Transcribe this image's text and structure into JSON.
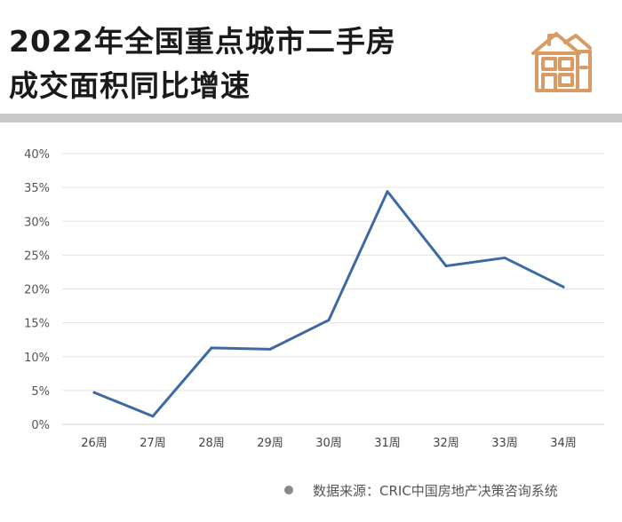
{
  "header": {
    "title_line1": "2022年全国重点城市二手房",
    "title_line2": "成交面积同比增速",
    "icon": "house-icon"
  },
  "footer": {
    "source": "数据来源：CRIC中国房地产决策咨询系统"
  },
  "colors": {
    "line": "#3d6aa3",
    "grid": "#e3e3e3",
    "icon": "#d99a63",
    "divider": "#c9c9c9"
  },
  "chart_data": {
    "type": "line",
    "categories": [
      "26周",
      "27周",
      "28周",
      "29周",
      "30周",
      "31周",
      "32周",
      "33周",
      "34周"
    ],
    "values": [
      4.7,
      1.2,
      11.3,
      11.1,
      15.4,
      34.4,
      23.4,
      24.6,
      20.3
    ],
    "ylim": [
      0,
      40
    ],
    "yticks": [
      "0%",
      "5%",
      "10%",
      "15%",
      "20%",
      "25%",
      "30%",
      "35%",
      "40%"
    ],
    "unit": "%",
    "grid": true,
    "legend": false
  }
}
